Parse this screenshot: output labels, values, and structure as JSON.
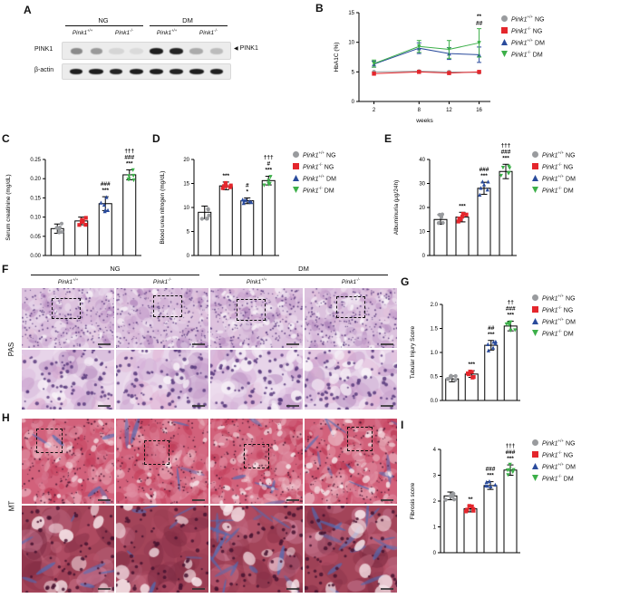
{
  "groups": [
    {
      "gene": "Pink1",
      "allele": "+/+",
      "condition": "NG",
      "color": "#999b9e",
      "marker": "circle"
    },
    {
      "gene": "Pink1",
      "allele": "-/-",
      "condition": "NG",
      "color": "#e4262c",
      "marker": "square"
    },
    {
      "gene": "Pink1",
      "allele": "+/+",
      "condition": "DM",
      "color": "#2a4b9c",
      "marker": "triangle-up"
    },
    {
      "gene": "Pink1",
      "allele": "-/-",
      "condition": "DM",
      "color": "#3caf49",
      "marker": "triangle-down"
    }
  ],
  "panel_a": {
    "label": "A",
    "condition_headers": [
      "NG",
      "DM"
    ],
    "lanes": [
      {
        "gene": "Pink1",
        "allele": "+/+"
      },
      {
        "gene": "Pink1",
        "allele": "-/-"
      },
      {
        "gene": "Pink1",
        "allele": "+/+"
      },
      {
        "gene": "Pink1",
        "allele": "-/-"
      }
    ],
    "blot_rows": [
      {
        "name": "PINK1",
        "band_intensities": [
          0.45,
          0.38,
          0.1,
          0.08,
          0.95,
          0.92,
          0.3,
          0.22
        ]
      },
      {
        "name": "β-actin",
        "band_intensities": [
          0.95,
          0.95,
          0.92,
          0.95,
          0.95,
          0.93,
          0.95,
          0.94
        ]
      }
    ],
    "arrow_icon": "◀",
    "arrow_label": "PINK1"
  },
  "panel_f": {
    "label": "F",
    "stain": "PAS",
    "condition_headers": [
      "NG",
      "DM"
    ],
    "columns": [
      {
        "gene": "Pink1",
        "allele": "+/+"
      },
      {
        "gene": "Pink1",
        "allele": "-/-"
      },
      {
        "gene": "Pink1",
        "allele": "+/+"
      },
      {
        "gene": "Pink1",
        "allele": "-/-"
      }
    ],
    "colors": {
      "base_top": "#dcc2de",
      "base_bottom": "#e7d4e9",
      "blobs_top": [
        "#cda9d1",
        "#bb8fc3",
        "#a273b1",
        "#ebdced",
        "#f3eaf4",
        "#d6b6da",
        "#e3c2dc"
      ],
      "blobs_bottom": [
        "#d8b2da",
        "#c79ccb",
        "#e0aed0",
        "#f0e2f1",
        "#caa2ce",
        "#b88ec0"
      ],
      "lumen": "#f8f2f8",
      "nuclei": "#583a7c"
    }
  },
  "panel_h": {
    "label": "H",
    "stain": "MT",
    "colors": {
      "base_top": "#d2617b",
      "base_bottom": "#a34459",
      "blobs_top": [
        "#c23a58",
        "#d87b93",
        "#e9a6b6",
        "#f1cbd3",
        "#b22c49",
        "#e392a6"
      ],
      "blobs_bottom": [
        "#8d3149",
        "#b85169",
        "#7c2a42",
        "#c77187",
        "#943a52",
        "#d084a0"
      ],
      "lumen": "#f7e6ea",
      "nuclei": "#471330",
      "collagen": "#4f6cb6"
    }
  },
  "chart_data": [
    {
      "id": "B",
      "panel": "B",
      "type": "line",
      "xlabel": "weeks",
      "ylabel": "HbA1C (%)",
      "x": [
        2,
        8,
        12,
        16
      ],
      "ylim": [
        0,
        15
      ],
      "yticks": [
        0,
        5,
        10,
        15
      ],
      "tick_decimals": 0,
      "series": [
        {
          "group": 0,
          "values": [
            5.0,
            5.1,
            5.0,
            4.9
          ],
          "err": [
            0.2,
            0.25,
            0.2,
            0.2
          ]
        },
        {
          "group": 1,
          "values": [
            4.7,
            5.0,
            4.8,
            5.0
          ],
          "err": [
            0.2,
            0.2,
            0.2,
            0.25
          ]
        },
        {
          "group": 2,
          "values": [
            6.3,
            9.0,
            8.1,
            7.9
          ],
          "err": [
            0.5,
            0.9,
            1.0,
            1.3
          ]
        },
        {
          "group": 3,
          "values": [
            6.4,
            9.3,
            8.8,
            9.9
          ],
          "err": [
            0.6,
            1.0,
            1.5,
            2.4
          ]
        }
      ],
      "annotations": [
        {
          "x": 16,
          "lines": [
            "**",
            "##"
          ]
        }
      ]
    },
    {
      "id": "C",
      "panel": "C",
      "type": "bar",
      "ylabel": "Serum creatinine (mg/dL)",
      "ylim": [
        0,
        0.25
      ],
      "yticks": [
        0,
        0.05,
        0.1,
        0.15,
        0.2,
        0.25
      ],
      "tick_decimals": 2,
      "values": [
        0.07,
        0.09,
        0.135,
        0.21
      ],
      "errors": [
        0.012,
        0.01,
        0.018,
        0.013
      ],
      "sig": [
        [],
        [],
        [
          "###",
          "***"
        ],
        [
          "†††",
          "###",
          "***"
        ]
      ]
    },
    {
      "id": "D",
      "panel": "D",
      "type": "bar",
      "ylabel": "Blood urea nitrogen (mg/dL)",
      "ylim": [
        0,
        20
      ],
      "yticks": [
        0,
        5,
        10,
        15,
        20
      ],
      "tick_decimals": 0,
      "values": [
        9.0,
        14.5,
        11.4,
        15.6
      ],
      "errors": [
        1.3,
        0.8,
        0.6,
        0.9
      ],
      "sig": [
        [],
        [
          "***"
        ],
        [
          "#",
          "*"
        ],
        [
          "†††",
          "#",
          "***"
        ]
      ]
    },
    {
      "id": "E",
      "panel": "E",
      "type": "bar",
      "ylabel": "Albuminuria (μg/24h)",
      "ylim": [
        0,
        40
      ],
      "yticks": [
        0,
        10,
        20,
        30,
        40
      ],
      "tick_decimals": 0,
      "values": [
        15,
        16,
        28,
        35
      ],
      "errors": [
        2,
        2,
        2.5,
        3
      ],
      "sig": [
        [],
        [
          "***"
        ],
        [
          "###",
          "***"
        ],
        [
          "†††",
          "###",
          "***"
        ]
      ]
    },
    {
      "id": "G",
      "panel": "G",
      "type": "bar",
      "ylabel": "Tubular Injury Score",
      "ylim": [
        0,
        2
      ],
      "yticks": [
        0,
        0.5,
        1,
        1.5,
        2
      ],
      "tick_decimals": 1,
      "values": [
        0.45,
        0.55,
        1.15,
        1.55
      ],
      "errors": [
        0.06,
        0.07,
        0.1,
        0.1
      ],
      "sig": [
        [],
        [
          "***"
        ],
        [
          "##",
          "***"
        ],
        [
          "††",
          "###",
          "***"
        ]
      ]
    },
    {
      "id": "I",
      "panel": "I",
      "type": "bar",
      "ylabel": "Fibrosis score",
      "ylim": [
        0,
        4
      ],
      "yticks": [
        0,
        1,
        2,
        3,
        4
      ],
      "tick_decimals": 0,
      "values": [
        2.2,
        1.7,
        2.6,
        3.2
      ],
      "errors": [
        0.15,
        0.12,
        0.15,
        0.2
      ],
      "sig": [
        [],
        [
          "**"
        ],
        [
          "###",
          "***"
        ],
        [
          "†††",
          "###",
          "***"
        ]
      ]
    }
  ]
}
